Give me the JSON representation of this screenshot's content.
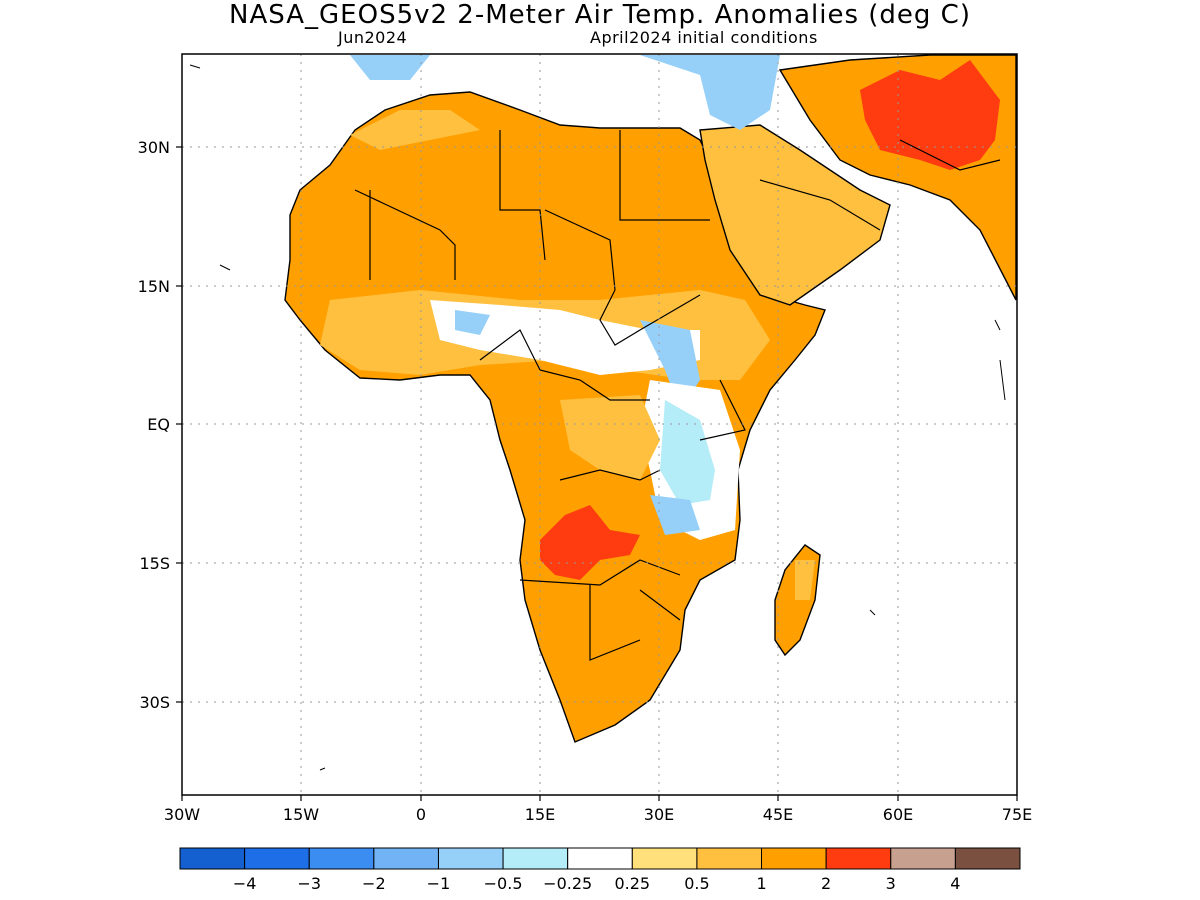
{
  "map": {
    "title": "NASA_GEOS5v2 2-Meter Air Temp. Anomalies (deg C)",
    "subtitle_left": "Jun2024",
    "subtitle_right": "April2024 initial conditions",
    "lon_range": [
      -30,
      75
    ],
    "lat_range": [
      -40,
      40
    ],
    "lat_ticks": [
      "30N",
      "15N",
      "EQ",
      "15S",
      "30S"
    ],
    "lat_tick_values": [
      30,
      15,
      0,
      -15,
      -30
    ],
    "lon_ticks": [
      "30W",
      "15W",
      "0",
      "15E",
      "30E",
      "45E",
      "60E",
      "75E"
    ],
    "lon_tick_values": [
      -30,
      -15,
      0,
      15,
      30,
      45,
      60,
      75
    ],
    "grid": "dotted"
  },
  "legend": {
    "colors": [
      "#1560d0",
      "#1e6ee8",
      "#3b8df2",
      "#72b3f5",
      "#96cff8",
      "#b4ecf8",
      "#ffffff",
      "#ffe07a",
      "#ffc040",
      "#ffa000",
      "#ff3c10",
      "#c8a090",
      "#7a5040"
    ],
    "labels": [
      "-4",
      "-3",
      "-2",
      "-1",
      "-0.5",
      "-0.25",
      "0.25",
      "0.5",
      "1",
      "2",
      "3",
      "4"
    ]
  }
}
